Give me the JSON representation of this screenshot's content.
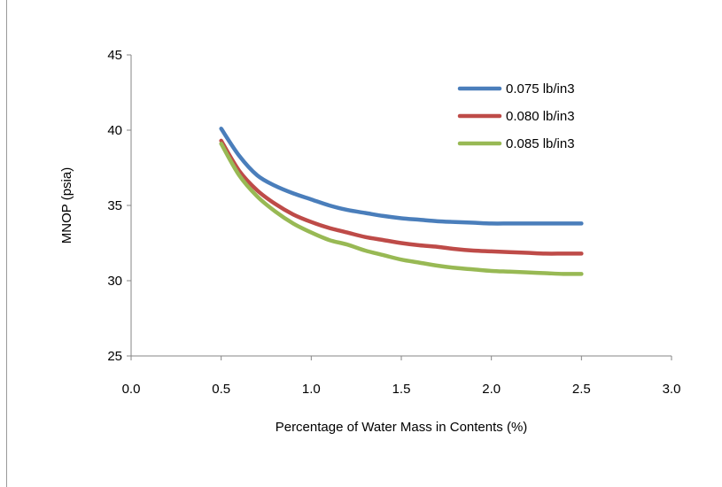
{
  "chart_data": {
    "type": "line",
    "title": "",
    "xlabel": "Percentage of Water Mass in Contents (%)",
    "ylabel": "MNOP (psia)",
    "xlim": [
      0,
      3
    ],
    "ylim": [
      25,
      45
    ],
    "x_ticks": [
      0,
      0.5,
      1,
      1.5,
      2,
      2.5,
      3
    ],
    "x_tick_labels": [
      "0.0",
      "0.5",
      "1.0",
      "1.5",
      "2.0",
      "2.5",
      "3.0"
    ],
    "y_ticks": [
      25,
      30,
      35,
      40,
      45
    ],
    "y_tick_labels": [
      "25",
      "30",
      "35",
      "40",
      "45"
    ],
    "grid": false,
    "legend_position": "top-right",
    "x": [
      0.5,
      0.6,
      0.7,
      0.8,
      0.9,
      1.0,
      1.1,
      1.2,
      1.3,
      1.4,
      1.5,
      1.6,
      1.7,
      1.8,
      1.9,
      2.0,
      2.1,
      2.2,
      2.3,
      2.4,
      2.5
    ],
    "series": [
      {
        "name": "0.075 lb/in3",
        "color": "#4a7ebb",
        "values": [
          40.1,
          38.3,
          37.0,
          36.3,
          35.8,
          35.4,
          35.0,
          34.7,
          34.5,
          34.3,
          34.15,
          34.05,
          33.95,
          33.9,
          33.85,
          33.8,
          33.8,
          33.8,
          33.8,
          33.8,
          33.8
        ]
      },
      {
        "name": "0.080 lb/in3",
        "color": "#be4b48",
        "values": [
          39.3,
          37.3,
          36.0,
          35.1,
          34.4,
          33.9,
          33.5,
          33.2,
          32.9,
          32.7,
          32.5,
          32.35,
          32.25,
          32.1,
          32.0,
          31.95,
          31.9,
          31.85,
          31.8,
          31.8,
          31.8
        ]
      },
      {
        "name": "0.085 lb/in3",
        "color": "#98b954",
        "values": [
          39.1,
          37.0,
          35.6,
          34.6,
          33.8,
          33.2,
          32.7,
          32.4,
          32.0,
          31.7,
          31.4,
          31.2,
          31.0,
          30.85,
          30.75,
          30.65,
          30.6,
          30.55,
          30.5,
          30.45,
          30.45
        ]
      }
    ]
  }
}
